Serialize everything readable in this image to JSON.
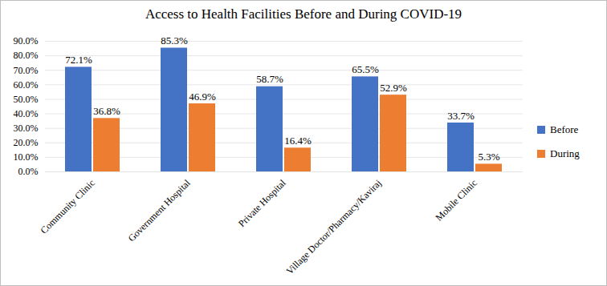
{
  "chart_data": {
    "type": "bar",
    "title": "Access to Health Facilities Before and During COVID-19",
    "categories": [
      "Community Clinic",
      "Government Hospital",
      "Private Hospital",
      "Village Doctor/Pharmacy/Kaviraj",
      "Mobile Clinic"
    ],
    "series": [
      {
        "name": "Before",
        "color": "#4472c4",
        "values": [
          72.1,
          85.3,
          58.7,
          65.5,
          33.7
        ],
        "value_labels": [
          "72.1%",
          "85.3%",
          "58.7%",
          "65.5%",
          "33.7%"
        ]
      },
      {
        "name": "During",
        "color": "#ed7d31",
        "values": [
          36.8,
          46.9,
          16.4,
          52.9,
          5.3
        ],
        "value_labels": [
          "36.8%",
          "46.9%",
          "16.4%",
          "52.9%",
          "5.3%"
        ]
      }
    ],
    "ylim": [
      0,
      90
    ],
    "yticks": [
      {
        "value": 0,
        "label": "0.0%"
      },
      {
        "value": 10,
        "label": "10.0%"
      },
      {
        "value": 20,
        "label": "20.0%"
      },
      {
        "value": 30,
        "label": "30.0%"
      },
      {
        "value": 40,
        "label": "40.0%"
      },
      {
        "value": 50,
        "label": "50.0%"
      },
      {
        "value": 60,
        "label": "60.0%"
      },
      {
        "value": 70,
        "label": "70.0%"
      },
      {
        "value": 80,
        "label": "80.0%"
      },
      {
        "value": 90,
        "label": "90.0%"
      }
    ],
    "grid": true,
    "legend": "right",
    "data_labels": true
  }
}
